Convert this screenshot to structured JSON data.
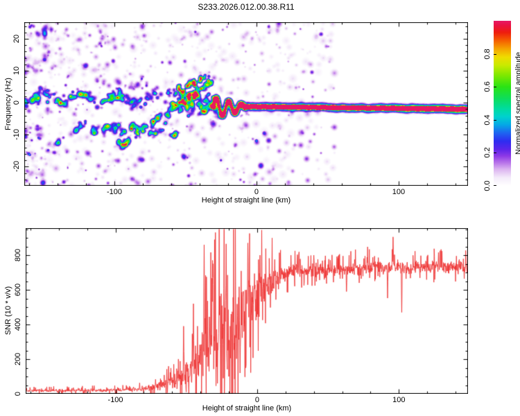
{
  "title": "S233.2026.012.00.38.R11",
  "figure": {
    "background": "#ffffff",
    "frame_color": "#000000"
  },
  "colorbar": {
    "label": "Normalized spectral amplitude",
    "tick_labels": [
      "0.0",
      "0.2",
      "0.4",
      "0.6",
      "0.8"
    ],
    "tick_values": [
      0,
      0.2,
      0.4,
      0.6,
      0.8
    ],
    "range": [
      0,
      1
    ],
    "stops": [
      [
        0.0,
        "#ffffff"
      ],
      [
        0.05,
        "#f4ebfa"
      ],
      [
        0.1,
        "#dcb4f0"
      ],
      [
        0.14,
        "#b873e9"
      ],
      [
        0.18,
        "#8e3ae6"
      ],
      [
        0.22,
        "#5d25ea"
      ],
      [
        0.27,
        "#2e2cf0"
      ],
      [
        0.32,
        "#1e64f0"
      ],
      [
        0.37,
        "#04a8e6"
      ],
      [
        0.42,
        "#00d2cd"
      ],
      [
        0.47,
        "#00dc9c"
      ],
      [
        0.53,
        "#0edd5a"
      ],
      [
        0.6,
        "#2ae314"
      ],
      [
        0.67,
        "#7fe800"
      ],
      [
        0.73,
        "#c8ea00"
      ],
      [
        0.78,
        "#efdc00"
      ],
      [
        0.83,
        "#f5a400"
      ],
      [
        0.88,
        "#f55f00"
      ],
      [
        0.93,
        "#ee1c0e"
      ],
      [
        0.97,
        "#ea1240"
      ],
      [
        1.0,
        "#e61866"
      ]
    ]
  },
  "chart_data": [
    {
      "type": "heatmap",
      "title": "S233.2026.012.00.38.R11",
      "xlabel": "Height of straight line (km)",
      "ylabel": "Frequency (Hz)",
      "xlim": [
        -163.4,
        148.8
      ],
      "ylim": [
        -26,
        25.2
      ],
      "xtick_values": [
        -100,
        0,
        100
      ],
      "xtick_labels": [
        "-100",
        "0",
        "100"
      ],
      "xtick_minor_step": 20,
      "ytick_values": [
        -20,
        -10,
        0,
        10,
        20
      ],
      "ytick_labels": [
        "-20",
        "-10",
        "0",
        "10",
        "20"
      ],
      "ytick_minor_step": 2,
      "grid": false,
      "legend": "colorbar-right",
      "features": {
        "seed": 1337,
        "noise": {
          "count": 980,
          "km_min": -163.4,
          "km_max": 55,
          "bias": 1.35,
          "amp": [
            0.04,
            0.2
          ],
          "radius": [
            2.2,
            7.5
          ]
        },
        "bands": [
          {
            "name": "upper-carrier-band",
            "km": [
              -163.4,
              -55
            ],
            "f": [
              1.8,
              1.0
            ],
            "wave_amp": 1.6,
            "wave_period": 26,
            "sigma": 2.3,
            "count": 125,
            "amp": [
              0.14,
              0.38
            ],
            "radius": [
              3,
              6.5
            ],
            "bright": [
              [
                -153,
                1.5,
                0.46
              ],
              [
                -147,
                0.2,
                0.4
              ],
              [
                -131,
                2.0,
                0.36
              ],
              [
                -120,
                2.4,
                0.44
              ],
              [
                -104,
                0.8,
                0.4
              ],
              [
                -98,
                1.6,
                0.36
              ]
            ]
          },
          {
            "name": "lower-sideband",
            "km": [
              -128,
              -54
            ],
            "f": [
              -7.6,
              -9.8
            ],
            "wave_amp": 0.8,
            "wave_period": 18,
            "sigma": 1.5,
            "count": 70,
            "amp": [
              0.15,
              0.36
            ],
            "radius": [
              3,
              6
            ],
            "bright": [
              [
                -97,
                -6.9,
                0.5
              ],
              [
                -88,
                -8.3,
                0.55
              ],
              [
                -80,
                -9.0,
                0.46
              ],
              [
                -71,
                -9.7,
                0.5
              ],
              [
                -64,
                -6.4,
                0.4
              ],
              [
                -58,
                -10.4,
                0.42
              ]
            ]
          },
          {
            "name": "rising-diagonal",
            "km": [
              -97,
              -31
            ],
            "f": [
              -13.5,
              6.5
            ],
            "wave_amp": 0.8,
            "wave_period": 10,
            "sigma": 1.7,
            "count": 90,
            "amp": [
              0.18,
              0.4
            ],
            "radius": [
              3,
              6
            ],
            "bright": [
              [
                -57,
                -0.6,
                0.5
              ],
              [
                -52,
                0.8,
                0.5
              ],
              [
                -47,
                2.2,
                0.5
              ],
              [
                -43,
                3.3,
                0.52
              ],
              [
                -39,
                4.4,
                0.5
              ]
            ]
          },
          {
            "name": "upper-diagonal",
            "km": [
              -63,
              -33
            ],
            "f": [
              2.5,
              8.5
            ],
            "wave_amp": 0.5,
            "wave_period": 8,
            "sigma": 1.3,
            "count": 48,
            "amp": [
              0.2,
              0.45
            ],
            "radius": [
              2.5,
              5
            ],
            "bright": [
              [
                -54,
                4.0,
                0.5
              ],
              [
                -49,
                5.2,
                0.48
              ],
              [
                -44,
                6.2,
                0.46
              ]
            ]
          },
          {
            "name": "pre-converge-cluster",
            "km": [
              -58,
              -26
            ],
            "f": [
              0,
              -0.5
            ],
            "wave_amp": 1.5,
            "wave_period": 9,
            "sigma": 4.2,
            "count": 105,
            "amp": [
              0.16,
              0.42
            ],
            "radius": [
              3,
              6
            ],
            "bright": []
          }
        ],
        "wiggle": {
          "km": [
            -30.5,
            -8
          ],
          "f_center": -1.6,
          "amp_hz": 3.3,
          "period_km": 8.8,
          "step": 0.28,
          "fuzz_amp": 0.2,
          "mid_amp": 0.5,
          "red_spots": [
            -26.5,
            -23,
            -19.5,
            -15.5,
            -11.5
          ]
        },
        "main_line": {
          "km": [
            -8,
            148.8
          ],
          "f": [
            -1.2,
            -2.05
          ],
          "step": 0.35,
          "sheath_amp": 0.5,
          "sheath_r": 4.3,
          "fuzz_r": 8.5,
          "fuzz_amp": 0.12,
          "core_segments": [
            [
              -8,
              25,
              1.0
            ],
            [
              25,
              38,
              0.72
            ],
            [
              38,
              55,
              0.85
            ],
            [
              55,
              75,
              1.0
            ],
            [
              75,
              84,
              0.66
            ],
            [
              84,
              93,
              0.9
            ],
            [
              93,
              113,
              0.7
            ],
            [
              113,
              122,
              0.82
            ],
            [
              122,
              148.8,
              0.97
            ]
          ]
        }
      }
    },
    {
      "type": "line",
      "xlabel": "Height of straight line (km)",
      "ylabel": "SNR (10 * v/v)",
      "xlim": [
        -163.4,
        148.8
      ],
      "ylim": [
        0,
        956
      ],
      "xtick_values": [
        -100,
        0,
        100
      ],
      "xtick_labels": [
        "-100",
        "0",
        "100"
      ],
      "xtick_minor_step": 20,
      "ytick_values": [
        0,
        200,
        400,
        600,
        800
      ],
      "ytick_labels": [
        "0",
        "200",
        "400",
        "600",
        "800"
      ],
      "ytick_minor_step": 50,
      "grid": false,
      "series": [
        {
          "name": "SNR",
          "color": "#ee3333",
          "seed": 99,
          "samples": 1530,
          "envelope": [
            [
              -163.4,
              18,
              10
            ],
            [
              -120,
              20,
              12
            ],
            [
              -95,
              22,
              12
            ],
            [
              -85,
              28,
              16
            ],
            [
              -75,
              38,
              24
            ],
            [
              -65,
              55,
              38
            ],
            [
              -58,
              75,
              55
            ],
            [
              -52,
              95,
              75
            ],
            [
              -47,
              120,
              95
            ],
            [
              -42,
              170,
              130
            ],
            [
              -38,
              260,
              220
            ],
            [
              -34,
              330,
              280
            ],
            [
              -30,
              380,
              300
            ],
            [
              -26,
              420,
              330
            ],
            [
              -22,
              430,
              340
            ],
            [
              -18,
              400,
              330
            ],
            [
              -14,
              420,
              320
            ],
            [
              -10,
              480,
              300
            ],
            [
              -6,
              520,
              260
            ],
            [
              -2,
              560,
              200
            ],
            [
              2,
              590,
              170
            ],
            [
              6,
              620,
              140
            ],
            [
              10,
              650,
              110
            ],
            [
              15,
              675,
              85
            ],
            [
              20,
              695,
              65
            ],
            [
              30,
              705,
              50
            ],
            [
              45,
              715,
              45
            ],
            [
              60,
              720,
              45
            ],
            [
              75,
              725,
              50
            ],
            [
              90,
              730,
              55
            ],
            [
              105,
              725,
              45
            ],
            [
              120,
              730,
              45
            ],
            [
              135,
              735,
              50
            ],
            [
              148.8,
              740,
              55
            ]
          ],
          "spikes": [
            [
              -52,
              390
            ],
            [
              -45,
              520
            ],
            [
              -37.5,
              860
            ],
            [
              -31,
              750
            ],
            [
              -22,
              865
            ],
            [
              -6.5,
              870
            ],
            [
              2,
              800
            ],
            [
              40,
              800
            ],
            [
              78,
              848
            ],
            [
              96,
              905
            ],
            [
              129,
              820
            ]
          ],
          "dips": [
            [
              -28,
              60
            ],
            [
              -24,
              90
            ],
            [
              -20,
              100
            ],
            [
              -16,
              85
            ],
            [
              -12,
              120
            ],
            [
              -8,
              150
            ],
            [
              63,
              590
            ],
            [
              72,
              640
            ],
            [
              92,
              552
            ],
            [
              102,
              470
            ]
          ]
        }
      ]
    }
  ]
}
